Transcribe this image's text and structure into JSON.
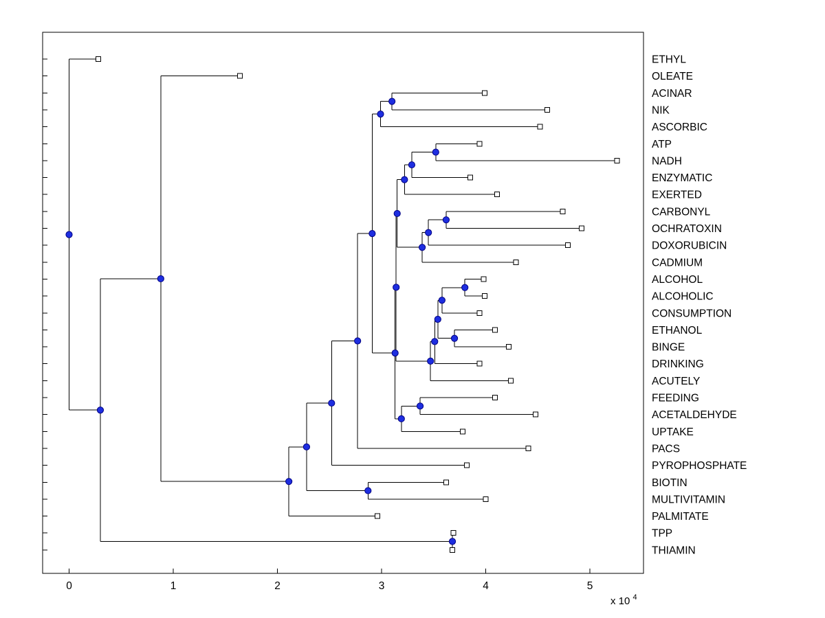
{
  "figure": {
    "background": "#ffffff"
  },
  "chart_data": {
    "type": "dendrogram",
    "title": "",
    "orientation": "horizontal, leaf labels on right",
    "x_axis": {
      "tick_labels": [
        "0",
        "1",
        "2",
        "3",
        "4",
        "5"
      ],
      "tick_values": [
        0,
        1,
        2,
        3,
        4,
        5
      ],
      "exponent_prefix": "x 10",
      "exponent": "4",
      "unit_scale": 10000,
      "xlim": [
        -0.26,
        5.52
      ]
    },
    "styles": {
      "background": "#ffffff",
      "line_color": "#000000",
      "axis_color": "#000000",
      "text_color": "#000000",
      "branch_dot_fill": "#1e2ee0",
      "branch_dot_stroke": "#000080",
      "leaf_marker_fill": "#ffffff",
      "leaf_marker_stroke": "#000000"
    },
    "leaf_marker": "open-square",
    "branch_marker": "filled-blue-circle",
    "leaf_labels": [
      "ETHYL",
      "OLEATE",
      "ACINAR",
      "NIK",
      "ASCORBIC",
      "ATP",
      "NADH",
      "ENZYMATIC",
      "EXERTED",
      "CARBONYL",
      "OCHRATOXIN",
      "DOXORUBICIN",
      "CADMIUM",
      "ALCOHOL",
      "ALCOHOLIC",
      "CONSUMPTION",
      "ETHANOL",
      "BINGE",
      "DRINKING",
      "ACUTELY",
      "FEEDING",
      "ACETALDEHYDE",
      "UPTAKE",
      "PACS",
      "PYROPHOSPHATE",
      "BIOTIN",
      "MULTIVITAMIN",
      "PALMITATE",
      "TPP",
      "THIAMIN"
    ],
    "tree": {
      "v": 0.0,
      "children": [
        {
          "name": "ETHYL",
          "v": 0.28
        },
        {
          "v": 0.3,
          "children": [
            {
              "v": 0.88,
              "children": [
                {
                  "name": "OLEATE",
                  "v": 1.64
                },
                {
                  "v": 2.11,
                  "children": [
                    {
                      "v": 2.28,
                      "children": [
                        {
                          "v": 2.52,
                          "children": [
                            {
                              "v": 2.77,
                              "children": [
                                {
                                  "v": 2.91,
                                  "children": [
                                    {
                                      "v": 2.99,
                                      "children": [
                                        {
                                          "v": 3.1,
                                          "children": [
                                            {
                                              "name": "ACINAR",
                                              "v": 3.99
                                            },
                                            {
                                              "name": "NIK",
                                              "v": 4.59
                                            }
                                          ]
                                        },
                                        {
                                          "name": "ASCORBIC",
                                          "v": 4.52
                                        }
                                      ]
                                    },
                                    {
                                      "v": 3.13,
                                      "children": [
                                        {
                                          "v": 3.14,
                                          "children": [
                                            {
                                              "v": 3.15,
                                              "children": [
                                                {
                                                  "v": 3.22,
                                                  "children": [
                                                    {
                                                      "v": 3.29,
                                                      "children": [
                                                        {
                                                          "v": 3.52,
                                                          "children": [
                                                            {
                                                              "name": "ATP",
                                                              "v": 3.94
                                                            },
                                                            {
                                                              "name": "NADH",
                                                              "v": 5.26
                                                            }
                                                          ]
                                                        },
                                                        {
                                                          "name": "ENZYMATIC",
                                                          "v": 3.85
                                                        }
                                                      ]
                                                    },
                                                    {
                                                      "name": "EXERTED",
                                                      "v": 4.11
                                                    }
                                                  ]
                                                },
                                                {
                                                  "v": 3.39,
                                                  "children": [
                                                    {
                                                      "v": 3.45,
                                                      "children": [
                                                        {
                                                          "v": 3.62,
                                                          "children": [
                                                            {
                                                              "name": "CARBONYL",
                                                              "v": 4.74
                                                            },
                                                            {
                                                              "name": "OCHRATOXIN",
                                                              "v": 4.92
                                                            }
                                                          ]
                                                        },
                                                        {
                                                          "name": "DOXORUBICIN",
                                                          "v": 4.79
                                                        }
                                                      ]
                                                    },
                                                    {
                                                      "name": "CADMIUM",
                                                      "v": 4.29
                                                    }
                                                  ]
                                                }
                                              ]
                                            },
                                            {
                                              "v": 3.47,
                                              "children": [
                                                {
                                                  "v": 3.51,
                                                  "children": [
                                                    {
                                                      "v": 3.54,
                                                      "children": [
                                                        {
                                                          "v": 3.58,
                                                          "children": [
                                                            {
                                                              "v": 3.8,
                                                              "children": [
                                                                {
                                                                  "name": "ALCOHOL",
                                                                  "v": 3.98
                                                                },
                                                                {
                                                                  "name": "ALCOHOLIC",
                                                                  "v": 3.99
                                                                }
                                                              ]
                                                            },
                                                            {
                                                              "name": "CONSUMPTION",
                                                              "v": 3.94
                                                            }
                                                          ]
                                                        },
                                                        {
                                                          "v": 3.7,
                                                          "children": [
                                                            {
                                                              "name": "ETHANOL",
                                                              "v": 4.09
                                                            },
                                                            {
                                                              "name": "BINGE",
                                                              "v": 4.22
                                                            }
                                                          ]
                                                        }
                                                      ]
                                                    },
                                                    {
                                                      "name": "DRINKING",
                                                      "v": 3.94
                                                    }
                                                  ]
                                                },
                                                {
                                                  "name": "ACUTELY",
                                                  "v": 4.24
                                                }
                                              ]
                                            }
                                          ]
                                        },
                                        {
                                          "v": 3.19,
                                          "children": [
                                            {
                                              "v": 3.37,
                                              "children": [
                                                {
                                                  "name": "FEEDING",
                                                  "v": 4.09
                                                },
                                                {
                                                  "name": "ACETALDEHYDE",
                                                  "v": 4.48
                                                }
                                              ]
                                            },
                                            {
                                              "name": "UPTAKE",
                                              "v": 3.78
                                            }
                                          ]
                                        }
                                      ]
                                    }
                                  ]
                                },
                                {
                                  "name": "PACS",
                                  "v": 4.41
                                }
                              ]
                            },
                            {
                              "name": "PYROPHOSPHATE",
                              "v": 3.82
                            }
                          ]
                        },
                        {
                          "v": 2.87,
                          "children": [
                            {
                              "name": "BIOTIN",
                              "v": 3.62
                            },
                            {
                              "name": "MULTIVITAMIN",
                              "v": 4.0
                            }
                          ]
                        }
                      ]
                    },
                    {
                      "name": "PALMITATE",
                      "v": 2.96
                    }
                  ]
                }
              ]
            },
            {
              "v": 3.68,
              "children": [
                {
                  "name": "TPP",
                  "v": 3.69
                },
                {
                  "name": "THIAMIN",
                  "v": 3.68
                }
              ]
            }
          ]
        }
      ]
    }
  }
}
